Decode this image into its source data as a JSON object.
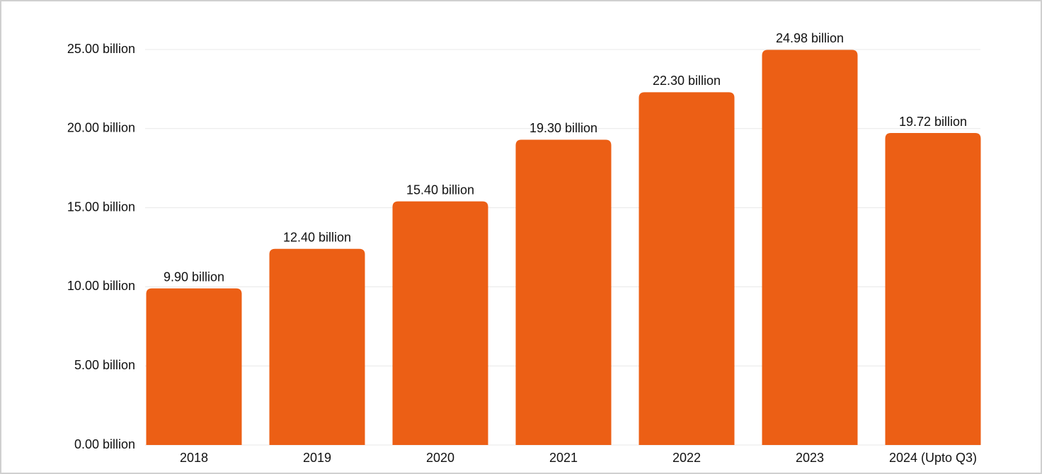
{
  "chart_data": {
    "type": "bar",
    "categories": [
      "2018",
      "2019",
      "2020",
      "2021",
      "2022",
      "2023",
      "2024 (Upto Q3)"
    ],
    "values": [
      9.9,
      12.4,
      15.4,
      19.3,
      22.3,
      24.98,
      19.72
    ],
    "value_labels": [
      "9.90 billion",
      "12.40 billion",
      "15.40 billion",
      "19.30 billion",
      "22.30 billion",
      "24.98 billion",
      "19.72 billion"
    ],
    "color": "#ec5f15",
    "ylim": [
      0,
      25
    ],
    "yticks": [
      {
        "value": 0,
        "label": "0.00 billion"
      },
      {
        "value": 5,
        "label": "5.00 billion"
      },
      {
        "value": 10,
        "label": "10.00 billion"
      },
      {
        "value": 15,
        "label": "15.00 billion"
      },
      {
        "value": 20,
        "label": "20.00 billion"
      },
      {
        "value": 25,
        "label": "25.00 billion"
      }
    ],
    "grid": true
  }
}
